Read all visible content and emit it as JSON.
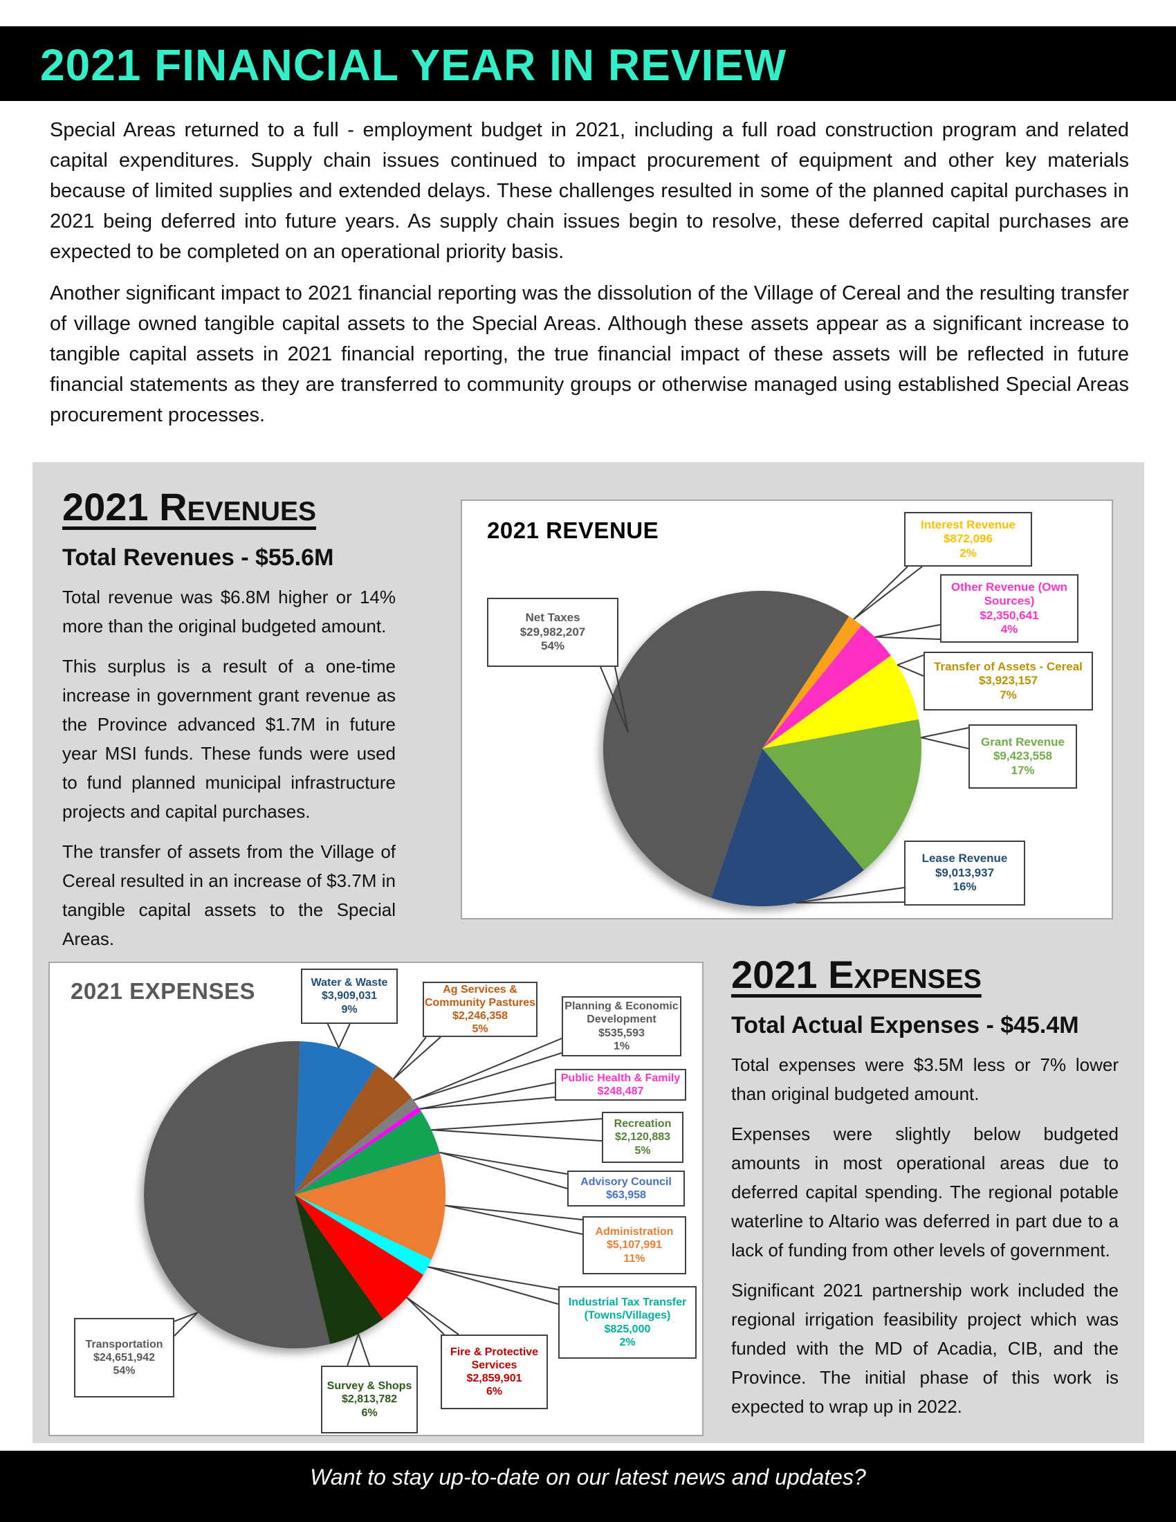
{
  "header": {
    "title": "2021 FINANCIAL YEAR IN REVIEW",
    "title_color": "#33efc7",
    "bar_color": "#000000"
  },
  "intro": {
    "paragraphs": [
      "Special Areas returned to a full - employment budget in 2021, including a full road construction program and related capital expenditures. Supply chain issues continued to impact procurement of equipment and other key materials because of limited supplies and extended delays. These challenges resulted in some of the planned capital purchases in 2021 being deferred into future years. As supply chain issues begin to resolve, these deferred capital purchases are expected to be completed on an operational priority basis.",
      "Another significant impact to 2021 financial reporting was the dissolution of the Village of Cereal and the resulting transfer of village owned tangible capital assets to the Special Areas. Although these assets appear as a significant increase to tangible capital assets in 2021 financial reporting, the true financial impact of these assets will be reflected in future financial statements as they are transferred to community groups or otherwise managed using established Special Areas procurement processes."
    ]
  },
  "revenues_section": {
    "heading": "2021 Revenues",
    "subheading": "Total Revenues - $55.6M",
    "paragraphs": [
      "Total revenue was $6.8M higher or 14% more than the original budgeted amount.",
      "This surplus is a result of a one-time increase in government grant revenue as the Province advanced $1.7M in future year MSI funds. These funds were used to fund planned municipal infrastructure projects and capital purchases.",
      "The transfer of assets from the Village of Cereal resulted in an increase of $3.7M in tangible capital assets to the Special Areas."
    ]
  },
  "expenses_section": {
    "heading": "2021 Expenses",
    "subheading": "Total Actual Expenses - $45.4M",
    "paragraphs": [
      "Total expenses were $3.5M less or 7% lower than original budgeted amount.",
      "Expenses were slightly below budgeted amounts in most operational areas due to deferred capital spending. The regional potable waterline to Altario was deferred in part due to a lack of funding from other levels of government.",
      "Significant 2021 partnership work included the regional irrigation feasibility project which was funded with the MD of Acadia, CIB, and the Province. The initial phase of this work is expected to wrap up in 2022."
    ]
  },
  "footer": {
    "text": "Want to stay up-to-date on our latest news and updates?"
  },
  "chart_data": [
    {
      "type": "pie",
      "title": "2021 REVENUE",
      "total": 55565596,
      "total_label": "$55.6M",
      "legend_position": "callouts",
      "slices": [
        {
          "label_lines": [
            "Interest Revenue"
          ],
          "value": 872096,
          "value_label": "$872,096",
          "pct": "2%",
          "color": "#f9a11b",
          "text_color": "#ffc000"
        },
        {
          "label_lines": [
            "Other Revenue (Own",
            "Sources)"
          ],
          "value": 2350641,
          "value_label": "$2,350,641",
          "pct": "4%",
          "color": "#ff2fc4",
          "text_color": "#ff33cc"
        },
        {
          "label_lines": [
            "Transfer of Assets - Cereal"
          ],
          "value": 3923157,
          "value_label": "$3,923,157",
          "pct": "7%",
          "color": "#ffff00",
          "text_color": "#bf9000"
        },
        {
          "label_lines": [
            "Grant Revenue"
          ],
          "value": 9423558,
          "value_label": "$9,423,558",
          "pct": "17%",
          "color": "#70ad47",
          "text_color": "#70ad47"
        },
        {
          "label_lines": [
            "Lease Revenue"
          ],
          "value": 9013937,
          "value_label": "$9,013,937",
          "pct": "16%",
          "color": "#28497c",
          "text_color": "#1f4e79"
        },
        {
          "label_lines": [
            "Net Taxes"
          ],
          "value": 29982207,
          "value_label": "$29,982,207",
          "pct": "54%",
          "color": "#595959",
          "text_color": "#595959"
        }
      ]
    },
    {
      "type": "pie",
      "title": "2021 EXPENSES",
      "total": 45382926,
      "total_label": "$45.4M",
      "legend_position": "callouts",
      "slices": [
        {
          "label_lines": [
            "Water & Waste"
          ],
          "value": 3909031,
          "value_label": "$3,909,031",
          "pct": "9%",
          "color": "#2473be",
          "text_color": "#1f4e79"
        },
        {
          "label_lines": [
            "Ag Services &",
            "Community Pastures"
          ],
          "value": 2246358,
          "value_label": "$2,246,358",
          "pct": "5%",
          "color": "#a4561f",
          "text_color": "#c55a11"
        },
        {
          "label_lines": [
            "Planning & Economic",
            "Development"
          ],
          "value": 535593,
          "value_label": "$535,593",
          "pct": "1%",
          "color": "#7f7f7f",
          "text_color": "#595959"
        },
        {
          "label_lines": [
            "Public Health & Family"
          ],
          "value": 248487,
          "value_label": "$248,487",
          "pct": null,
          "color": "#ff00ff",
          "text_color": "#ff33cc"
        },
        {
          "label_lines": [
            "Recreation"
          ],
          "value": 2120883,
          "value_label": "$2,120,883",
          "pct": "5%",
          "color": "#12a452",
          "text_color": "#538135"
        },
        {
          "label_lines": [
            "Advisory Council"
          ],
          "value": 63958,
          "value_label": "$63,958",
          "pct": null,
          "color": "#4472c4",
          "text_color": "#4472c4"
        },
        {
          "label_lines": [
            "Administration"
          ],
          "value": 5107991,
          "value_label": "$5,107,991",
          "pct": "11%",
          "color": "#ed7d31",
          "text_color": "#ed7d31"
        },
        {
          "label_lines": [
            "Industrial Tax Transfer",
            "(Towns/Villages)"
          ],
          "value": 825000,
          "value_label": "$825,000",
          "pct": "2%",
          "color": "#00ffff",
          "text_color": "#00b0a0"
        },
        {
          "label_lines": [
            "Fire & Protective",
            "Services"
          ],
          "value": 2859901,
          "value_label": "$2,859,901",
          "pct": "6%",
          "color": "#ff0000",
          "text_color": "#c00000"
        },
        {
          "label_lines": [
            "Survey & Shops"
          ],
          "value": 2813782,
          "value_label": "$2,813,782",
          "pct": "6%",
          "color": "#17380e",
          "text_color": "#2b5b17"
        },
        {
          "label_lines": [
            "Transportation"
          ],
          "value": 24651942,
          "value_label": "$24,651,942",
          "pct": "54%",
          "color": "#595959",
          "text_color": "#595959"
        }
      ]
    }
  ]
}
